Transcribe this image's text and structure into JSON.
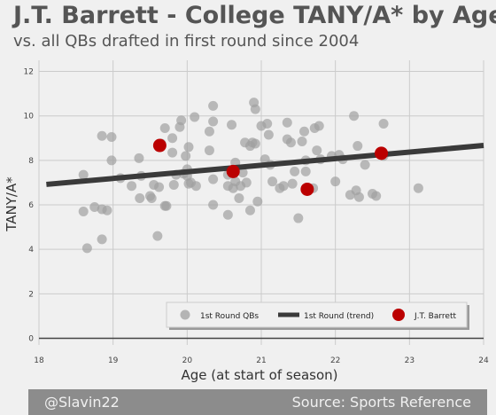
{
  "title": "J.T. Barrett - College TANY/A* by Age",
  "subtitle": "vs. all QBs drafted in first round since 2004",
  "footer": {
    "left": "@Slavin22",
    "right": "Source: Sports Reference"
  },
  "colors": {
    "background": "#f0f0f0",
    "scatter": "#a0a0a0",
    "trend": "#3a3a3a",
    "highlight": "#bb0000",
    "grid": "#cbcbcb",
    "footer": "#8c8c8c"
  },
  "chart_data": {
    "type": "scatter",
    "xlabel": "Age (at start of season)",
    "ylabel": "TANY/A*",
    "xlim": [
      18,
      24
    ],
    "ylim": [
      -0.3,
      12.5
    ],
    "xticks": [
      "18",
      "19",
      "20",
      "21",
      "22",
      "23",
      "24"
    ],
    "yticks": [
      "0",
      "2",
      "4",
      "6",
      "8",
      "10",
      "12"
    ],
    "grid": true,
    "legend": {
      "placement": "bottom-right",
      "entries": [
        "1st Round QBs",
        "1st Round (trend)",
        "J.T. Barrett"
      ]
    },
    "series": [
      {
        "name": "1st Round QBs",
        "points": [
          [
            18.6,
            7.35
          ],
          [
            18.6,
            5.7
          ],
          [
            18.65,
            4.05
          ],
          [
            18.75,
            5.9
          ],
          [
            18.85,
            5.8
          ],
          [
            18.85,
            4.45
          ],
          [
            18.85,
            9.1
          ],
          [
            18.92,
            5.75
          ],
          [
            18.98,
            8.0
          ],
          [
            18.98,
            9.05
          ],
          [
            19.1,
            7.2
          ],
          [
            19.25,
            6.85
          ],
          [
            19.35,
            8.1
          ],
          [
            19.36,
            6.3
          ],
          [
            19.38,
            7.3
          ],
          [
            19.5,
            6.4
          ],
          [
            19.52,
            6.3
          ],
          [
            19.55,
            6.9
          ],
          [
            19.6,
            4.6
          ],
          [
            19.62,
            6.8
          ],
          [
            19.65,
            8.75
          ],
          [
            19.7,
            5.95
          ],
          [
            19.7,
            9.45
          ],
          [
            19.72,
            5.95
          ],
          [
            19.8,
            8.35
          ],
          [
            19.8,
            9.0
          ],
          [
            19.82,
            6.9
          ],
          [
            19.85,
            7.35
          ],
          [
            19.9,
            9.5
          ],
          [
            19.92,
            9.8
          ],
          [
            19.95,
            7.4
          ],
          [
            19.98,
            8.2
          ],
          [
            20.0,
            7.6
          ],
          [
            20.0,
            7.3
          ],
          [
            20.02,
            8.6
          ],
          [
            20.02,
            6.95
          ],
          [
            20.05,
            7.0
          ],
          [
            20.1,
            9.95
          ],
          [
            20.12,
            6.85
          ],
          [
            20.3,
            9.3
          ],
          [
            20.3,
            8.45
          ],
          [
            20.35,
            10.45
          ],
          [
            20.35,
            9.75
          ],
          [
            20.35,
            7.15
          ],
          [
            20.35,
            6.0
          ],
          [
            20.55,
            5.55
          ],
          [
            20.55,
            6.85
          ],
          [
            20.55,
            7.35
          ],
          [
            20.6,
            9.6
          ],
          [
            20.62,
            6.75
          ],
          [
            20.65,
            7.9
          ],
          [
            20.65,
            7.05
          ],
          [
            20.7,
            6.3
          ],
          [
            20.72,
            6.85
          ],
          [
            20.75,
            7.45
          ],
          [
            20.78,
            8.8
          ],
          [
            20.8,
            7.0
          ],
          [
            20.85,
            5.75
          ],
          [
            20.85,
            8.65
          ],
          [
            20.88,
            8.8
          ],
          [
            20.9,
            10.6
          ],
          [
            20.92,
            10.3
          ],
          [
            20.92,
            8.75
          ],
          [
            20.95,
            6.15
          ],
          [
            21.0,
            9.55
          ],
          [
            21.05,
            8.05
          ],
          [
            21.08,
            9.65
          ],
          [
            21.1,
            9.15
          ],
          [
            21.12,
            7.8
          ],
          [
            21.15,
            7.05
          ],
          [
            21.25,
            6.75
          ],
          [
            21.3,
            6.85
          ],
          [
            21.35,
            9.7
          ],
          [
            21.35,
            8.95
          ],
          [
            21.4,
            8.8
          ],
          [
            21.42,
            6.95
          ],
          [
            21.45,
            7.5
          ],
          [
            21.5,
            5.4
          ],
          [
            21.55,
            8.85
          ],
          [
            21.58,
            9.3
          ],
          [
            21.6,
            8.0
          ],
          [
            21.6,
            7.5
          ],
          [
            21.7,
            6.75
          ],
          [
            21.72,
            9.45
          ],
          [
            21.75,
            8.45
          ],
          [
            21.78,
            9.55
          ],
          [
            21.8,
            8.05
          ],
          [
            21.95,
            8.2
          ],
          [
            22.0,
            7.05
          ],
          [
            22.05,
            8.25
          ],
          [
            22.1,
            8.05
          ],
          [
            22.2,
            6.45
          ],
          [
            22.25,
            10.0
          ],
          [
            22.28,
            6.65
          ],
          [
            22.3,
            8.65
          ],
          [
            22.32,
            6.35
          ],
          [
            22.4,
            7.8
          ],
          [
            22.5,
            6.5
          ],
          [
            22.55,
            6.4
          ],
          [
            22.65,
            9.65
          ],
          [
            22.65,
            8.2
          ],
          [
            23.12,
            6.75
          ]
        ]
      },
      {
        "name": "1st Round (trend)",
        "points": [
          [
            18.1,
            6.92
          ],
          [
            24.0,
            8.67
          ]
        ]
      },
      {
        "name": "J.T. Barrett",
        "points": [
          [
            19.63,
            8.67
          ],
          [
            20.62,
            7.5
          ],
          [
            21.62,
            6.7
          ],
          [
            22.62,
            8.32
          ]
        ]
      }
    ]
  }
}
